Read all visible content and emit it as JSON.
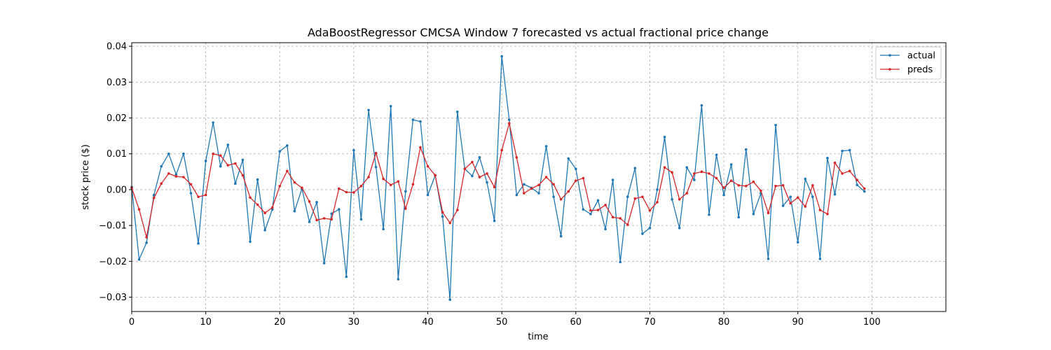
{
  "chart_data": {
    "type": "line",
    "title": "AdaBoostRegressor CMCSA Window 7 forecasted vs actual fractional price change",
    "xlabel": "time",
    "ylabel": "stock price ($)",
    "xlim": [
      0,
      110
    ],
    "ylim": [
      -0.034,
      0.041
    ],
    "x_ticks": [
      0,
      10,
      20,
      30,
      40,
      50,
      60,
      70,
      80,
      90,
      100
    ],
    "y_ticks": [
      -0.03,
      -0.02,
      -0.01,
      0.0,
      0.01,
      0.02,
      0.03,
      0.04
    ],
    "x_tick_labels": [
      "0",
      "10",
      "20",
      "30",
      "40",
      "50",
      "60",
      "70",
      "80",
      "90",
      "100"
    ],
    "y_tick_labels": [
      "−0.03",
      "−0.02",
      "−0.01",
      "0.00",
      "0.01",
      "0.02",
      "0.03",
      "0.04"
    ],
    "grid": true,
    "legend_position": "top-right",
    "x": [
      0,
      1,
      2,
      3,
      4,
      5,
      6,
      7,
      8,
      9,
      10,
      11,
      12,
      13,
      14,
      15,
      16,
      17,
      18,
      19,
      20,
      21,
      22,
      23,
      24,
      25,
      26,
      27,
      28,
      29,
      30,
      31,
      32,
      33,
      34,
      35,
      36,
      37,
      38,
      39,
      40,
      41,
      42,
      43,
      44,
      45,
      46,
      47,
      48,
      49,
      50,
      51,
      52,
      53,
      54,
      55,
      56,
      57,
      58,
      59,
      60,
      61,
      62,
      63,
      64,
      65,
      66,
      67,
      68,
      69,
      70,
      71,
      72,
      73,
      74,
      75,
      76,
      77,
      78,
      79,
      80,
      81,
      82,
      83,
      84,
      85,
      86,
      87,
      88,
      89,
      90,
      91,
      92,
      93,
      94,
      95,
      96,
      97,
      98,
      99
    ],
    "series": [
      {
        "name": "actual",
        "color": "#1f77b4",
        "values": [
          0.0007,
          -0.0195,
          -0.0148,
          -0.0015,
          0.0065,
          0.01,
          0.0042,
          0.01,
          -0.001,
          -0.015,
          0.008,
          0.0187,
          0.0065,
          0.0125,
          0.0017,
          0.0083,
          -0.0145,
          0.0028,
          -0.0113,
          -0.0055,
          0.0107,
          0.0123,
          -0.006,
          0.0003,
          -0.009,
          -0.0035,
          -0.0205,
          -0.0067,
          -0.0055,
          -0.0243,
          0.011,
          -0.0083,
          0.0222,
          0.0063,
          -0.011,
          0.0233,
          -0.025,
          -0.0005,
          0.0195,
          0.019,
          -0.0015,
          0.004,
          -0.0075,
          -0.0307,
          0.0217,
          0.0058,
          0.0038,
          0.009,
          0.002,
          -0.0087,
          0.0372,
          0.0195,
          -0.0015,
          0.0015,
          0.0005,
          -0.001,
          0.0121,
          -0.002,
          -0.013,
          0.0087,
          0.0058,
          -0.0055,
          -0.0068,
          -0.003,
          -0.011,
          0.0027,
          -0.0202,
          -0.002,
          0.006,
          -0.0123,
          -0.0107,
          0.0,
          0.0147,
          -0.0027,
          -0.0107,
          0.0062,
          0.0027,
          0.0235,
          -0.007,
          0.0097,
          -0.0015,
          0.007,
          -0.0077,
          0.0112,
          -0.0068,
          -0.001,
          -0.0193,
          0.018,
          -0.0045,
          -0.002,
          -0.0147,
          0.003,
          -0.002,
          -0.0193,
          0.0088,
          -0.0013,
          0.0108,
          0.011,
          0.0013,
          -0.0005
        ]
      },
      {
        "name": "preds",
        "color": "#d62728",
        "values": [
          0.0005,
          -0.0055,
          -0.0133,
          -0.0023,
          0.0017,
          0.0045,
          0.0037,
          0.0035,
          0.0015,
          -0.002,
          -0.0015,
          0.01,
          0.0095,
          0.0068,
          0.0073,
          0.004,
          -0.0022,
          -0.0042,
          -0.0065,
          -0.005,
          0.001,
          0.0052,
          0.002,
          0.0005,
          -0.0033,
          -0.0085,
          -0.008,
          -0.0083,
          0.0003,
          -0.0007,
          -0.0008,
          0.001,
          0.0035,
          0.0102,
          0.003,
          0.0013,
          0.0023,
          -0.0053,
          0.0015,
          0.0118,
          0.0065,
          0.004,
          -0.0063,
          -0.0093,
          -0.0057,
          0.0058,
          0.0077,
          0.0035,
          0.0045,
          0.0007,
          0.011,
          0.0185,
          0.009,
          -0.001,
          0.0003,
          0.0013,
          0.0035,
          0.0015,
          -0.0027,
          -0.0005,
          0.0025,
          0.0032,
          -0.0058,
          -0.0057,
          -0.0043,
          -0.0077,
          -0.008,
          -0.0098,
          -0.0025,
          -0.002,
          -0.0058,
          -0.0035,
          0.0062,
          0.0048,
          -0.0027,
          -0.001,
          0.0045,
          0.005,
          0.0045,
          0.0032,
          0.0005,
          0.0025,
          0.0012,
          0.001,
          0.0022,
          -0.0003,
          -0.0065,
          0.001,
          0.0012,
          -0.0038,
          -0.0022,
          -0.0047,
          0.0012,
          -0.0057,
          -0.0068,
          0.0075,
          0.0045,
          0.0052,
          0.0027,
          0.0003
        ]
      }
    ]
  }
}
